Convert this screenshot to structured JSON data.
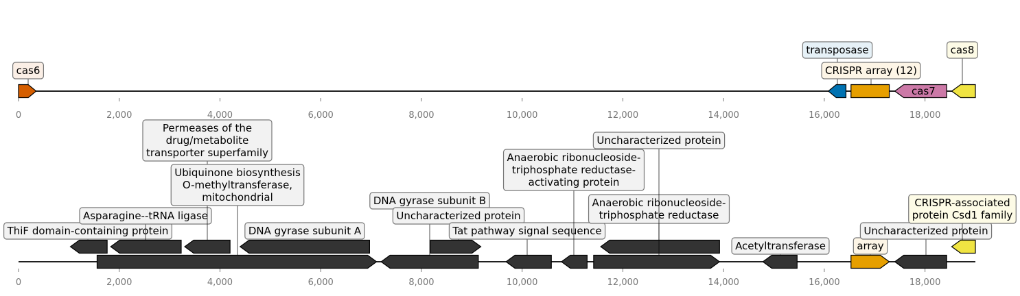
{
  "domain_max": 19000,
  "tracks": [
    {
      "id": "top",
      "ticks": [
        "0",
        "2,000",
        "4,000",
        "6,000",
        "8,000",
        "10,000",
        "12,000",
        "14,000",
        "16,000",
        "18,000"
      ],
      "tick_values": [
        0,
        2000,
        4000,
        6000,
        8000,
        10000,
        12000,
        14000,
        16000,
        18000
      ],
      "features": [
        {
          "start": 0,
          "end": 350,
          "strand": 1,
          "color": "#d55e00",
          "label": "cas6",
          "label_bg": "#fbefe6",
          "label_level": 0,
          "label_inside": false
        },
        {
          "start": 16080,
          "end": 16430,
          "strand": -1,
          "color": "#0072b2",
          "label": "transposase",
          "label_bg": "#e6f1f7",
          "label_level": 1,
          "label_inside": false
        },
        {
          "start": 16530,
          "end": 17290,
          "strand": 0,
          "color": "#e69f00",
          "label": "CRISPR array (12)",
          "label_bg": "#fdf5e6",
          "label_level": 0,
          "label_inside": false
        },
        {
          "start": 17400,
          "end": 18430,
          "strand": -1,
          "color": "#cc79a7",
          "label": "cas7",
          "label_bg": "#fae9f1",
          "label_level": 0,
          "label_inside": true
        },
        {
          "start": 18530,
          "end": 19000,
          "strand": -1,
          "color": "#f0e442",
          "label": "cas8",
          "label_bg": "#fdfbe6",
          "label_level": 1,
          "label_inside": false
        }
      ]
    },
    {
      "id": "bottom",
      "ticks": [
        "0",
        "2,000",
        "4,000",
        "6,000",
        "8,000",
        "10,000",
        "12,000",
        "14,000",
        "16,000",
        "18,000"
      ],
      "tick_values": [
        0,
        2000,
        4000,
        6000,
        8000,
        10000,
        12000,
        14000,
        16000,
        18000
      ],
      "features": [
        {
          "start": 1030,
          "end": 1760,
          "strand": -1,
          "row": 1,
          "color": "#333333",
          "label": "ThiF domain-containing protein",
          "label_bg": "#f2f2f2",
          "label_level": 0
        },
        {
          "start": 1830,
          "end": 3230,
          "strand": -1,
          "row": 1,
          "color": "#333333",
          "label": "Asparagine--tRNA ligase",
          "label_bg": "#f2f2f2",
          "label_level": 1
        },
        {
          "start": 3300,
          "end": 4200,
          "strand": -1,
          "row": 1,
          "color": "#333333",
          "label": "Permeases of the drug/metabolite transporter  superfamily",
          "label_bg": "#f2f2f2",
          "label_level": 5
        },
        {
          "start": 4400,
          "end": 6970,
          "strand": -1,
          "row": 1,
          "color": "#333333",
          "label": "DNA gyrase subunit A",
          "label_bg": "#f2f2f2",
          "label_level": 0
        },
        {
          "start": 1560,
          "end": 7110,
          "strand": 1,
          "row": 0,
          "color": "#333333",
          "label": "Ubiquinone biosynthesis O-methyltransferase, mitochondrial",
          "label_bg": "#f2f2f2",
          "label_level": 3
        },
        {
          "start": 7200,
          "end": 9130,
          "strand": -1,
          "row": 0,
          "color": "#333333",
          "label": "DNA gyrase subunit B",
          "label_bg": "#f2f2f2",
          "label_level": 2
        },
        {
          "start": 8180,
          "end": 9180,
          "strand": 1,
          "row": 1,
          "color": "#333333",
          "label": "Uncharacterized protein",
          "label_bg": "#f2f2f2",
          "label_level": 1
        },
        {
          "start": 9680,
          "end": 10580,
          "strand": -1,
          "row": 0,
          "color": "#333333",
          "label": "Tat  pathway signal sequence",
          "label_bg": "#f2f2f2",
          "label_level": 0
        },
        {
          "start": 10780,
          "end": 11290,
          "strand": -1,
          "row": 0,
          "color": "#333333",
          "label": "Anaerobic ribonucleoside-triphosphate reductase-activating protein",
          "label_bg": "#f2f2f2",
          "label_level": 4
        },
        {
          "start": 11560,
          "end": 13920,
          "strand": -1,
          "row": 1,
          "color": "#333333",
          "label": "Anaerobic ribonucleoside-triphosphate reductase",
          "label_bg": "#f2f2f2",
          "label_level": 2
        },
        {
          "start": 11420,
          "end": 13920,
          "strand": 1,
          "row": 0,
          "color": "#333333",
          "label": "Uncharacterized protein",
          "label_bg": "#f2f2f2",
          "label_level": 6
        },
        {
          "start": 14780,
          "end": 15460,
          "strand": -1,
          "row": 0,
          "color": "#333333",
          "label": "Acetyltransferase",
          "label_bg": "#f2f2f2",
          "label_level": 0
        },
        {
          "start": 16530,
          "end": 17290,
          "strand": 1,
          "row": 0,
          "color": "#e69f00",
          "label": "array",
          "label_bg": "#fdf5e6",
          "label_level": 0
        },
        {
          "start": 17400,
          "end": 18430,
          "strand": -1,
          "row": 0,
          "color": "#333333",
          "label": "Uncharacterized protein",
          "label_bg": "#f2f2f2",
          "label_level": 1
        },
        {
          "start": 18530,
          "end": 19000,
          "strand": -1,
          "row": 1,
          "color": "#f0e442",
          "label": "CRISPR-associated protein Csd1 family",
          "label_bg": "#fdfbe6",
          "label_level": 2
        }
      ]
    }
  ]
}
